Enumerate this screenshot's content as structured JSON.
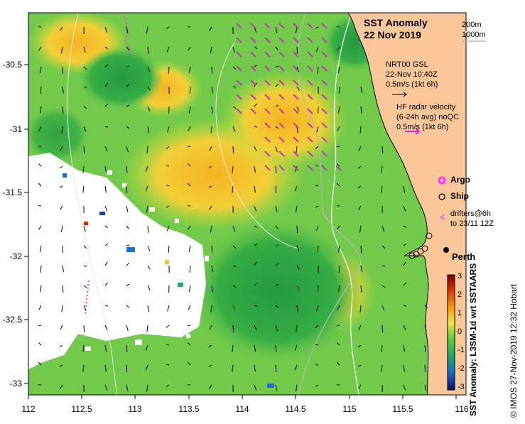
{
  "map": {
    "title": "SST Anomaly",
    "date": "22 Nov 2019",
    "isobaths": {
      "shallow": "200m",
      "deep": "1000m"
    },
    "current_legend": {
      "line1": "NRT00 GSL",
      "line2": "22-Nov 10:40Z",
      "line3": "0.5m/s (1kt 6h)"
    },
    "radar_legend": {
      "line1": "HF radar velocity",
      "line2": "(6-24h avg) noQC",
      "line3": "0.5m/s (1kt 6h)"
    },
    "symbols": {
      "argo": "Argo",
      "ship": "Ship",
      "drifters_line1": "drifters@6h",
      "drifters_line2": "to 23/11 12Z"
    },
    "city": "Perth",
    "colorbar_label": "SST Anomaly: L3SM-1d wrt SSTAARS",
    "credit": "© IMOS 27-Nov-2019 12:32 Hobart",
    "x_ticks": [
      "112",
      "112.5",
      "113",
      "113.5",
      "114",
      "114.5",
      "115",
      "115.5",
      "116"
    ],
    "y_ticks": [
      "-30.5",
      "-31",
      "-31.5",
      "-32",
      "-32.5",
      "-33"
    ],
    "colorbar_ticks": [
      "3",
      "2",
      "1",
      "0",
      "-1",
      "-2",
      "-3"
    ],
    "colors": {
      "land": "#f9c79a",
      "ocean_base": "#77d04a",
      "warm": "#f2c12d",
      "cool": "#2e9e43",
      "argo": "#ff33ff",
      "radar_arrow": "#e020e0",
      "isobath_shallow": "#ffffff",
      "isobath_deep": "#b6b6b6"
    }
  }
}
